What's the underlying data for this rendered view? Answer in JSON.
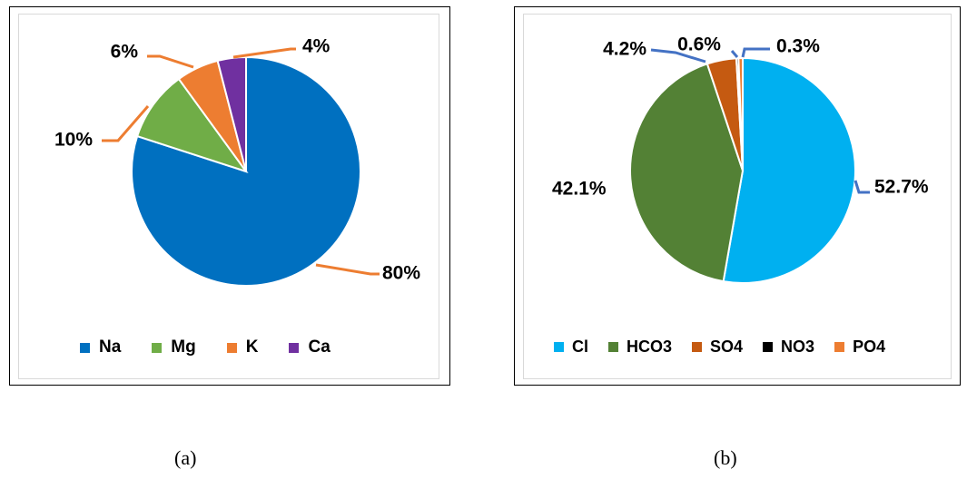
{
  "chart_data": [
    {
      "type": "pie",
      "categories": [
        "Na",
        "Mg",
        "K",
        "Ca"
      ],
      "values": [
        80,
        10,
        6,
        4
      ],
      "labels": [
        "80%",
        "10%",
        "6%",
        "4%"
      ],
      "colors": [
        "#0070c0",
        "#70ad47",
        "#ed7d31",
        "#7030a0"
      ],
      "leader_color": "#ed7d31",
      "legend": "bottom",
      "caption": "(a)"
    },
    {
      "type": "pie",
      "categories": [
        "Cl",
        "HCO3",
        "SO4",
        "NO3",
        "PO4"
      ],
      "values": [
        52.7,
        42.1,
        4.2,
        0.3,
        0.6
      ],
      "labels": [
        "52.7%",
        "42.1%",
        "4.2%",
        "0.3%",
        "0.6%"
      ],
      "colors": [
        "#00b0f0",
        "#538135",
        "#c55a11",
        "#000000",
        "#ed7d31"
      ],
      "leader_color": "#4472c4",
      "legend": "bottom",
      "caption": "(b)"
    }
  ]
}
